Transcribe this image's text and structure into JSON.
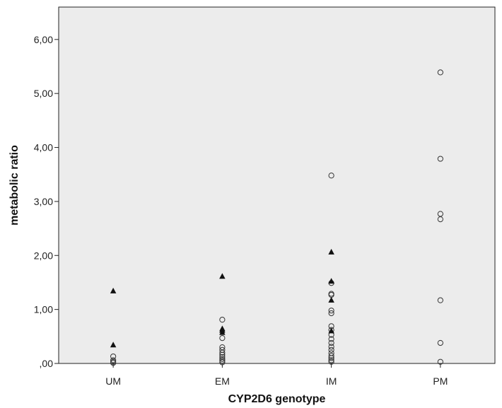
{
  "chart_data": {
    "type": "scatter",
    "title": "",
    "xlabel": "CYP2D6 genotype",
    "ylabel": "metabolic ratio",
    "categories": [
      "UM",
      "EM",
      "IM",
      "PM"
    ],
    "ylim": [
      0,
      6.6
    ],
    "yticks": [
      0,
      1,
      2,
      3,
      4,
      5,
      6
    ],
    "ytick_labels": [
      ",00",
      "1,00",
      "2,00",
      "3,00",
      "4,00",
      "5,00",
      "6,00"
    ],
    "grid": false,
    "plot_background": "#ececec",
    "marker_color": "#111111",
    "series": [
      {
        "marker": "circle",
        "points": [
          {
            "x": "UM",
            "y": 0.13
          },
          {
            "x": "UM",
            "y": 0.06
          },
          {
            "x": "UM",
            "y": 0.03
          },
          {
            "x": "UM",
            "y": 0.01
          },
          {
            "x": "EM",
            "y": 0.81
          },
          {
            "x": "EM",
            "y": 0.47
          },
          {
            "x": "EM",
            "y": 0.3
          },
          {
            "x": "EM",
            "y": 0.25
          },
          {
            "x": "EM",
            "y": 0.2
          },
          {
            "x": "EM",
            "y": 0.16
          },
          {
            "x": "EM",
            "y": 0.12
          },
          {
            "x": "EM",
            "y": 0.08
          },
          {
            "x": "EM",
            "y": 0.05
          },
          {
            "x": "EM",
            "y": 0.02
          },
          {
            "x": "IM",
            "y": 3.48
          },
          {
            "x": "IM",
            "y": 1.49
          },
          {
            "x": "IM",
            "y": 1.29
          },
          {
            "x": "IM",
            "y": 1.27
          },
          {
            "x": "IM",
            "y": 0.98
          },
          {
            "x": "IM",
            "y": 0.93
          },
          {
            "x": "IM",
            "y": 0.69
          },
          {
            "x": "IM",
            "y": 0.62
          },
          {
            "x": "IM",
            "y": 0.53
          },
          {
            "x": "IM",
            "y": 0.45
          },
          {
            "x": "IM",
            "y": 0.38
          },
          {
            "x": "IM",
            "y": 0.31
          },
          {
            "x": "IM",
            "y": 0.25
          },
          {
            "x": "IM",
            "y": 0.19
          },
          {
            "x": "IM",
            "y": 0.14
          },
          {
            "x": "IM",
            "y": 0.1
          },
          {
            "x": "IM",
            "y": 0.06
          },
          {
            "x": "IM",
            "y": 0.03
          },
          {
            "x": "PM",
            "y": 5.39
          },
          {
            "x": "PM",
            "y": 3.79
          },
          {
            "x": "PM",
            "y": 2.77
          },
          {
            "x": "PM",
            "y": 2.67
          },
          {
            "x": "PM",
            "y": 1.17
          },
          {
            "x": "PM",
            "y": 0.38
          },
          {
            "x": "PM",
            "y": 0.03
          }
        ]
      },
      {
        "marker": "triangle",
        "points": [
          {
            "x": "UM",
            "y": 1.34
          },
          {
            "x": "UM",
            "y": 0.34
          },
          {
            "x": "EM",
            "y": 1.61
          },
          {
            "x": "EM",
            "y": 0.64
          },
          {
            "x": "EM",
            "y": 0.61
          },
          {
            "x": "EM",
            "y": 0.57
          },
          {
            "x": "IM",
            "y": 2.06
          },
          {
            "x": "IM",
            "y": 1.52
          },
          {
            "x": "IM",
            "y": 1.17
          },
          {
            "x": "IM",
            "y": 0.6
          }
        ]
      }
    ]
  }
}
